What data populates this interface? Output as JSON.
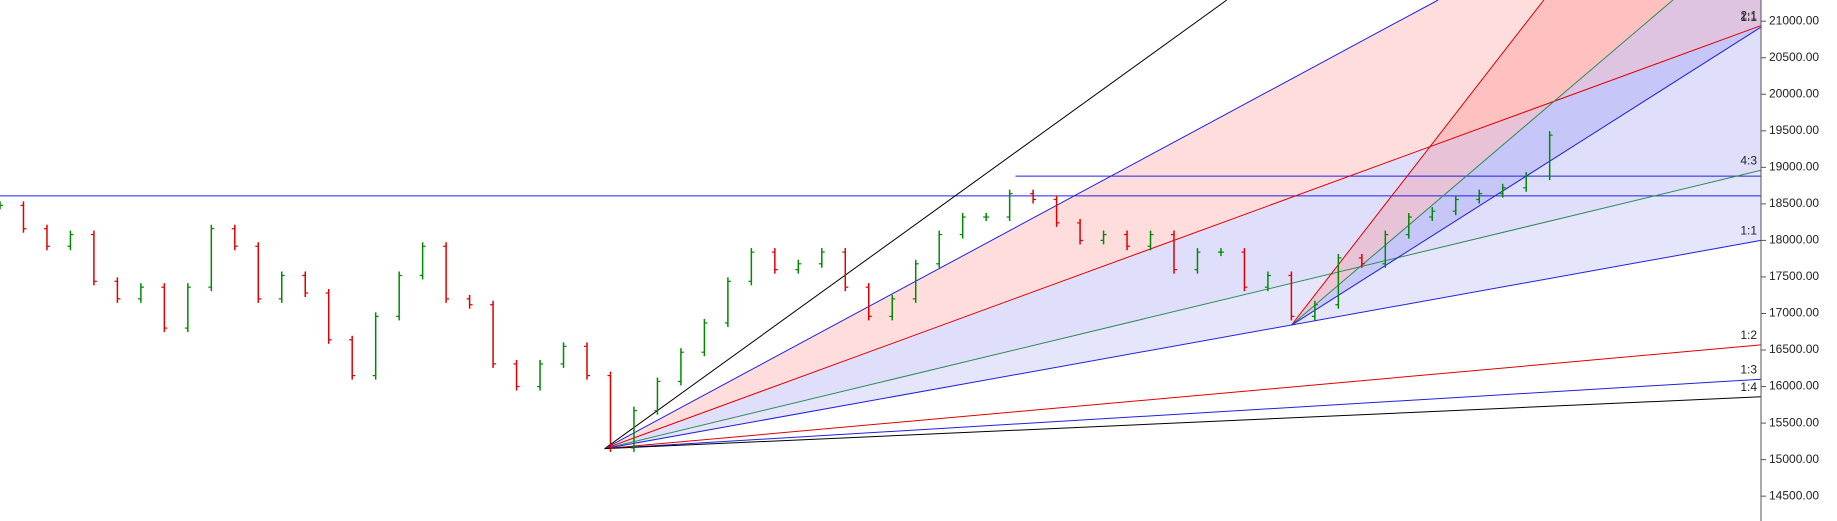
{
  "chart_data": {
    "type": "ohlc-gann",
    "xlim": [
      0,
      300
    ],
    "ylim": [
      14160,
      21290
    ],
    "yticks": [
      {
        "value": 14500,
        "label": "14500.00"
      },
      {
        "value": 15000,
        "label": "15000.00"
      },
      {
        "value": 15500,
        "label": "15500.00"
      },
      {
        "value": 16000,
        "label": "16000.00"
      },
      {
        "value": 16500,
        "label": "16500.00"
      },
      {
        "value": 17000,
        "label": "17000.00"
      },
      {
        "value": 17500,
        "label": "17500.00"
      },
      {
        "value": 18000,
        "label": "18000.00"
      },
      {
        "value": 18500,
        "label": "18500.00"
      },
      {
        "value": 19000,
        "label": "19000.00"
      },
      {
        "value": 19500,
        "label": "19500.00"
      },
      {
        "value": 20000,
        "label": "20000.00"
      },
      {
        "value": 20500,
        "label": "20500.00"
      },
      {
        "value": 21000,
        "label": "21000.00"
      }
    ],
    "up_color": "#008a00",
    "down_color": "#e00000",
    "series": [
      {
        "x": [
          0,
          4,
          8,
          12,
          16,
          20,
          24,
          28,
          32,
          36,
          40,
          44,
          48,
          52,
          56,
          60,
          64,
          68,
          72,
          76,
          80,
          84,
          88,
          92,
          96,
          100,
          104,
          108,
          112,
          116,
          120,
          124,
          128,
          132,
          136,
          140,
          144,
          148,
          152,
          156,
          160,
          164,
          168,
          172,
          176,
          180,
          184,
          188,
          192,
          196,
          200,
          204,
          208,
          212,
          216,
          220,
          224,
          228,
          232,
          236,
          240,
          244,
          248,
          252,
          256,
          260,
          264
        ],
        "values": [
          18480,
          18160,
          17920,
          18080,
          17440,
          17200,
          17360,
          16800,
          17360,
          18160,
          17920,
          17200,
          17520,
          17280,
          16640,
          16150,
          16960,
          17520,
          17920,
          17200,
          17120,
          16310,
          16000,
          16310,
          16550,
          16150,
          15160,
          15670,
          16070,
          16470,
          16870,
          17440,
          17840,
          17600,
          17680,
          17840,
          17360,
          16960,
          17200,
          17680,
          18080,
          18320,
          18320,
          18640,
          18560,
          18240,
          18000,
          18080,
          17920,
          18080,
          17600,
          17840,
          17840,
          17360,
          17520,
          16960,
          17120,
          17760,
          17680,
          18080,
          18320,
          18400,
          18560,
          18640,
          18720,
          18880,
          19440
        ]
      }
    ],
    "hlines": [
      {
        "x": 0,
        "value": 18610,
        "color": "#2020e0"
      },
      {
        "x": 173,
        "value": 18880,
        "color": "#2020e0"
      }
    ],
    "fans": [
      {
        "origin": [
          103,
          15150
        ],
        "lines": [
          {
            "end": [
              209,
              21290
            ],
            "color": "#000000"
          },
          {
            "end": [
              245,
              21290
            ],
            "color": "#2020e0",
            "fill": "rgba(255,120,120,0.25)"
          },
          {
            "end": [
              300,
              20940
            ],
            "color": "#e00000",
            "label": "2:1",
            "fill": "rgba(110,110,240,0.22)"
          },
          {
            "end": [
              300,
              18960
            ],
            "color": "#2e8b57",
            "label": "4:3",
            "fill": "rgba(110,110,240,0.18)"
          },
          {
            "end": [
              300,
              18000
            ],
            "color": "#2020e0",
            "label": "1:1"
          },
          {
            "end": [
              300,
              16570
            ],
            "color": "#e00000",
            "label": "1:2"
          },
          {
            "end": [
              300,
              16100
            ],
            "color": "#2020e0",
            "label": "1:3"
          },
          {
            "end": [
              300,
              15860
            ],
            "color": "#000000",
            "label": "1:4"
          }
        ]
      },
      {
        "origin": [
          220,
          16840
        ],
        "lines": [
          {
            "end": [
              263,
              21290
            ],
            "color": "#e00000",
            "fill": "rgba(255,120,120,0.28)"
          },
          {
            "end": [
              285,
              21290
            ],
            "color": "#2e8b57",
            "fill": "rgba(110,110,240,0.22)"
          },
          {
            "end": [
              300,
              20920
            ],
            "color": "#2020e0",
            "label": "1:1"
          }
        ]
      }
    ]
  }
}
